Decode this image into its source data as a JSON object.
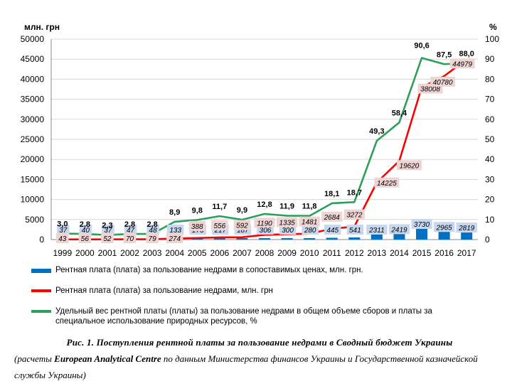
{
  "chart_data": {
    "type": "bar+line",
    "y_left_label": "млн. грн",
    "y_right_label": "%",
    "ylim_left": [
      0,
      50000
    ],
    "ylim_right": [
      0,
      100
    ],
    "y_left_ticks": [
      "0",
      "5000",
      "10000",
      "15000",
      "20000",
      "25000",
      "30000",
      "35000",
      "40000",
      "45000",
      "50000"
    ],
    "y_right_ticks": [
      "0",
      "10",
      "20",
      "30",
      "40",
      "50",
      "60",
      "70",
      "80",
      "90",
      "100"
    ],
    "categories": [
      "1999",
      "2000",
      "2001",
      "2002",
      "2003",
      "2004",
      "2005",
      "2006",
      "2007",
      "2008",
      "2009",
      "2010",
      "2011",
      "2012",
      "2013",
      "2014",
      "2015",
      "2016",
      "2017"
    ],
    "series": [
      {
        "name": "Рентная плата (плата) за пользование недрами в сопоставимых ценах, млн. грн.",
        "type": "bar",
        "axis": "left",
        "color": "#0070c0",
        "values": [
          37,
          40,
          37,
          47,
          48,
          133,
          173,
          217,
          187,
          306,
          300,
          280,
          445,
          541,
          2311,
          2419,
          3730,
          2965,
          2819
        ],
        "labels": [
          "37",
          "40",
          "37",
          "47",
          "48",
          "133",
          "173",
          "217",
          "187",
          "306",
          "300",
          "280",
          "445",
          "541",
          "2311",
          "2419",
          "3730",
          "2965",
          "2819"
        ]
      },
      {
        "name": "Рентная плата (плата) за пользование недрами, млн. грн",
        "type": "line",
        "axis": "left",
        "color": "#ff0000",
        "values": [
          43,
          56,
          52,
          70,
          79,
          274,
          388,
          556,
          592,
          1190,
          1335,
          1481,
          2684,
          3272,
          14225,
          19620,
          38008,
          40780,
          44979
        ],
        "labels": [
          "43",
          "56",
          "52",
          "70",
          "79",
          "274",
          "388",
          "556",
          "592",
          "1190",
          "1335",
          "1481",
          "2684",
          "3272",
          "14225",
          "19620",
          "38008",
          "40780",
          "44979"
        ]
      },
      {
        "name": "Удельный вес рентной платы (платы) за пользование недрами в общем объеме сборов и платы за специальное использование природных ресурсов, %",
        "type": "line",
        "axis": "right",
        "color": "#2e9e5b",
        "values": [
          3.0,
          2.8,
          2.3,
          2.8,
          2.8,
          8.9,
          9.8,
          11.7,
          9.9,
          12.8,
          11.9,
          11.8,
          18.1,
          18.7,
          49.3,
          58.4,
          90.6,
          87.5,
          88.0
        ],
        "labels": [
          "3,0",
          "2,8",
          "2,3",
          "2,8",
          "2,8",
          "8,9",
          "9,8",
          "11,7",
          "9,9",
          "12,8",
          "11,9",
          "11,8",
          "18,1",
          "18,7",
          "49,3",
          "58,4",
          "90,6",
          "87,5",
          "88,0"
        ]
      }
    ]
  },
  "caption": {
    "title": "Рис. 1. Поступления рентной платы за пользование недрами в Сводный бюджет Украины",
    "source_prefix": "(расчеты ",
    "source_org": "European Analytical Centre",
    "source_suffix": " по данным Министерства финансов Украины и Государственной казначейской службы Украины)"
  }
}
